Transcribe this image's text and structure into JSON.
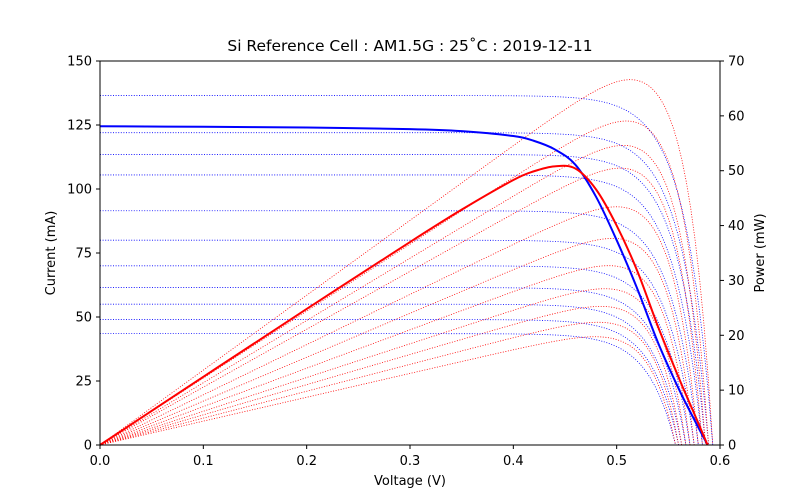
{
  "chart_data": {
    "type": "line",
    "title": "Si Reference Cell : AM1.5G : 25˚C : 2019-12-11",
    "xlabel": "Voltage (V)",
    "ylabel_left": "Current (mA)",
    "ylabel_right": "Power (mW)",
    "xlim": [
      0.0,
      0.6
    ],
    "ylim_left": [
      0,
      150
    ],
    "ylim_right": [
      0,
      70
    ],
    "x_ticks": [
      "0.0",
      "0.1",
      "0.2",
      "0.3",
      "0.4",
      "0.5",
      "0.6"
    ],
    "y_left_ticks": [
      "0",
      "25",
      "50",
      "75",
      "100",
      "125",
      "150"
    ],
    "y_right_ticks": [
      "0",
      "10",
      "20",
      "30",
      "40",
      "50",
      "60",
      "70"
    ],
    "grid": false,
    "legend": false,
    "colors": {
      "current": "#0000ff",
      "power": "#ff0000"
    },
    "main_iv": {
      "isc": 124.5,
      "voc": 0.588,
      "points": [
        [
          0.0,
          124.5
        ],
        [
          0.1,
          124.3
        ],
        [
          0.2,
          124.0
        ],
        [
          0.3,
          123.4
        ],
        [
          0.35,
          122.6
        ],
        [
          0.4,
          120.7
        ],
        [
          0.42,
          118.8
        ],
        [
          0.44,
          115.5
        ],
        [
          0.46,
          109.5
        ],
        [
          0.48,
          97.0
        ],
        [
          0.5,
          80.0
        ],
        [
          0.52,
          61.0
        ],
        [
          0.54,
          40.0
        ],
        [
          0.56,
          22.0
        ],
        [
          0.575,
          10.0
        ],
        [
          0.588,
          0.0
        ]
      ]
    },
    "main_power": {
      "peak_power_mW": 50.5,
      "peak_voltage_V": 0.463,
      "points": [
        [
          0.0,
          0.0
        ],
        [
          0.1,
          12.43
        ],
        [
          0.2,
          24.8
        ],
        [
          0.3,
          37.0
        ],
        [
          0.35,
          42.9
        ],
        [
          0.4,
          48.3
        ],
        [
          0.42,
          49.9
        ],
        [
          0.44,
          50.8
        ],
        [
          0.46,
          50.4
        ],
        [
          0.48,
          46.6
        ],
        [
          0.5,
          40.0
        ],
        [
          0.52,
          31.7
        ],
        [
          0.54,
          21.6
        ],
        [
          0.56,
          12.3
        ],
        [
          0.575,
          5.75
        ],
        [
          0.588,
          0.0
        ]
      ]
    },
    "family_isc_mA": [
      136.5,
      122.0,
      113.5,
      105.5,
      91.5,
      80.0,
      70.0,
      61.5,
      55.0,
      49.0,
      43.5
    ],
    "family_voc_V": [
      0.593,
      0.589,
      0.586,
      0.583,
      0.579,
      0.575,
      0.571,
      0.567,
      0.563,
      0.56,
      0.557
    ]
  }
}
